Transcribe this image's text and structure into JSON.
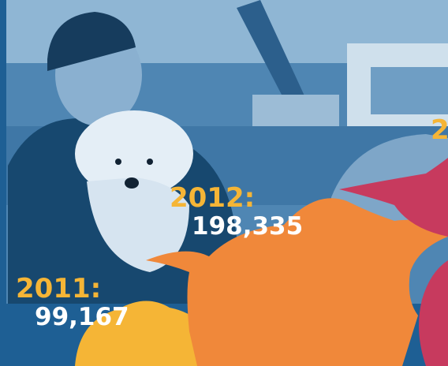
{
  "items": [
    {
      "year": "2011:",
      "value": "99,167"
    },
    {
      "year": "2012:",
      "value": "198,335"
    },
    {
      "year": "2"
    }
  ]
}
